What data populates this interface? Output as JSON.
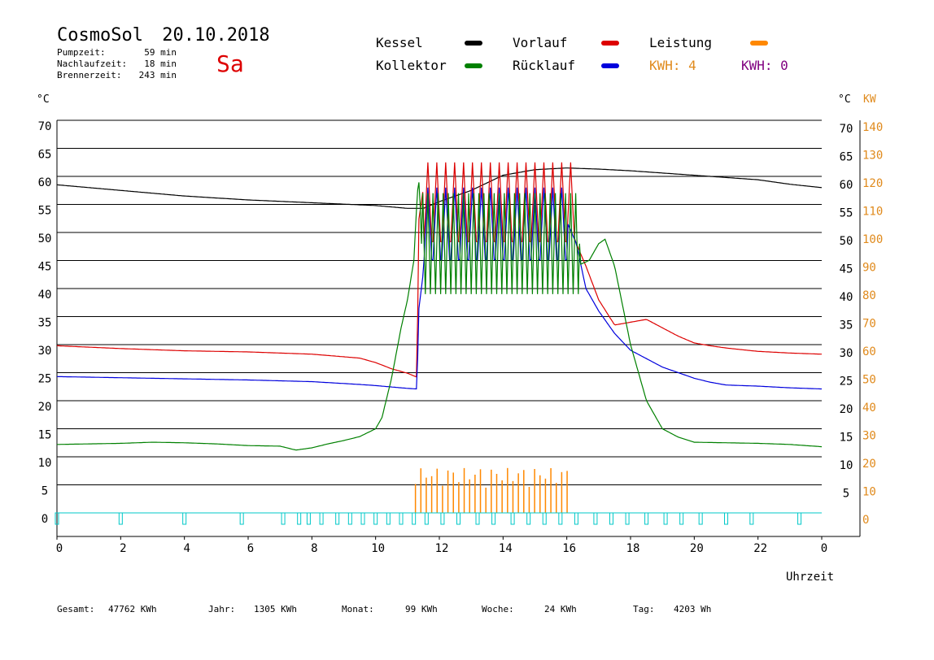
{
  "header": {
    "app_name": "CosmoSol",
    "date": "20.10.2018",
    "weekday": "Sa",
    "stats": [
      {
        "label": "Pumpzeit:",
        "value": "59 min"
      },
      {
        "label": "Nachlaufzeit:",
        "value": "18 min"
      },
      {
        "label": "Brennerzeit:",
        "value": "243 min"
      }
    ]
  },
  "legend": {
    "kessel": {
      "label": "Kessel",
      "color": "#000000"
    },
    "vorlauf": {
      "label": "Vorlauf",
      "color": "#dd0000"
    },
    "leistung": {
      "label": "Leistung",
      "color": "#ff8800"
    },
    "kollektor": {
      "label": "Kollektor",
      "color": "#008000"
    },
    "ruecklauf": {
      "label": "Rücklauf",
      "color": "#0000dd"
    },
    "kwh_orange": {
      "text": "KWH: 4",
      "color": "#e08a1c"
    },
    "kwh_purple": {
      "text": "KWH: 0",
      "color": "#800080"
    }
  },
  "axes": {
    "y_left_unit": "°C",
    "y_right_unit": "°C",
    "y_right2_unit": "KW",
    "x_label": "Uhrzeit",
    "left_ticks": [
      "70",
      "65",
      "60",
      "55",
      "50",
      "45",
      "40",
      "35",
      "30",
      "25",
      "20",
      "15",
      "10",
      "5",
      "0"
    ],
    "right_ticks": [
      "70",
      "65",
      "60",
      "55",
      "50",
      "45",
      "40",
      "35",
      "30",
      "25",
      "20",
      "15",
      "10",
      "5"
    ],
    "right2_ticks": [
      "140",
      "130",
      "120",
      "110",
      "100",
      "90",
      "80",
      "70",
      "60",
      "50",
      "40",
      "30",
      "20",
      "10",
      "0"
    ],
    "x_ticks": [
      "0",
      "2",
      "4",
      "6",
      "8",
      "10",
      "12",
      "14",
      "16",
      "18",
      "20",
      "22",
      "0"
    ]
  },
  "footer": [
    {
      "label": "Gesamt:",
      "value": "47762 KWh"
    },
    {
      "label": "Jahr:",
      "value": "1305 KWh"
    },
    {
      "label": "Monat:",
      "value": "99 KWh"
    },
    {
      "label": "Woche:",
      "value": "24 KWh"
    },
    {
      "label": "Tag:",
      "value": "4203 Wh"
    }
  ],
  "chart_data": {
    "type": "line",
    "xlabel": "Uhrzeit",
    "ylabel": "°C",
    "xlim": [
      0,
      24
    ],
    "ylim": [
      0,
      70
    ],
    "y2lim": [
      0,
      140
    ],
    "grid": true,
    "legend_position": "top",
    "series": [
      {
        "name": "Kessel",
        "color": "#000000",
        "points": [
          [
            0,
            58.5
          ],
          [
            2,
            57.5
          ],
          [
            4,
            56.5
          ],
          [
            6,
            55.8
          ],
          [
            8,
            55.3
          ],
          [
            10,
            54.8
          ],
          [
            11,
            54.3
          ],
          [
            11.5,
            54.3
          ],
          [
            12,
            55.5
          ],
          [
            13,
            57.5
          ],
          [
            14,
            60.2
          ],
          [
            15,
            61.2
          ],
          [
            16,
            61.5
          ],
          [
            17,
            61.3
          ],
          [
            18,
            61.0
          ],
          [
            19,
            60.6
          ],
          [
            20,
            60.2
          ],
          [
            21,
            59.8
          ],
          [
            22,
            59.4
          ],
          [
            23,
            58.6
          ],
          [
            24,
            58.0
          ]
        ]
      },
      {
        "name": "Vorlauf",
        "color": "#dd0000",
        "points": [
          [
            0,
            29.8
          ],
          [
            2,
            29.3
          ],
          [
            4,
            28.9
          ],
          [
            6,
            28.7
          ],
          [
            8,
            28.3
          ],
          [
            9.5,
            27.6
          ],
          [
            10,
            26.8
          ],
          [
            10.5,
            25.7
          ],
          [
            11,
            24.9
          ],
          [
            11.3,
            24.2
          ],
          [
            11.35,
            52
          ],
          [
            11.5,
            58
          ],
          [
            11.8,
            55
          ],
          [
            12,
            54
          ],
          [
            12.5,
            54
          ],
          [
            13,
            54
          ],
          [
            13.5,
            54
          ],
          [
            14,
            54
          ],
          [
            14.5,
            53
          ],
          [
            15,
            53
          ],
          [
            15.5,
            53
          ],
          [
            16,
            53
          ],
          [
            16.3,
            48
          ],
          [
            16.6,
            44
          ],
          [
            17,
            38
          ],
          [
            17.5,
            33.5
          ],
          [
            18,
            34
          ],
          [
            18.5,
            34.5
          ],
          [
            19,
            33
          ],
          [
            19.5,
            31.5
          ],
          [
            20,
            30.3
          ],
          [
            20.5,
            29.8
          ],
          [
            21,
            29.4
          ],
          [
            22,
            28.8
          ],
          [
            23,
            28.5
          ],
          [
            24,
            28.3
          ]
        ],
        "spikes": {
          "from": 11.5,
          "to": 16.2,
          "step": 0.28,
          "high": 62.5,
          "low": 46
        }
      },
      {
        "name": "Rücklauf",
        "color": "#0000dd",
        "points": [
          [
            0,
            24.3
          ],
          [
            2,
            24.1
          ],
          [
            4,
            23.9
          ],
          [
            6,
            23.7
          ],
          [
            8,
            23.4
          ],
          [
            9.5,
            22.9
          ],
          [
            10,
            22.7
          ],
          [
            11,
            22.2
          ],
          [
            11.3,
            22.1
          ],
          [
            11.35,
            36
          ],
          [
            11.5,
            43
          ],
          [
            12,
            41
          ],
          [
            12.5,
            50
          ],
          [
            13,
            56
          ],
          [
            14,
            58
          ],
          [
            14.5,
            55
          ],
          [
            15,
            51
          ],
          [
            15.5,
            53
          ],
          [
            16,
            52
          ],
          [
            16.3,
            48
          ],
          [
            16.6,
            40
          ],
          [
            17,
            36
          ],
          [
            17.5,
            32
          ],
          [
            18,
            29
          ],
          [
            18.5,
            27.5
          ],
          [
            19,
            26
          ],
          [
            19.5,
            25
          ],
          [
            20,
            24
          ],
          [
            20.5,
            23.3
          ],
          [
            21,
            22.8
          ],
          [
            22,
            22.6
          ],
          [
            23,
            22.3
          ],
          [
            24,
            22.1
          ]
        ],
        "spikes": {
          "from": 11.5,
          "to": 16.0,
          "step": 0.28,
          "high": 58,
          "low": 43
        }
      },
      {
        "name": "Kollektor",
        "color": "#008000",
        "points": [
          [
            0,
            12.2
          ],
          [
            1,
            12.3
          ],
          [
            2,
            12.4
          ],
          [
            3,
            12.6
          ],
          [
            4,
            12.5
          ],
          [
            5,
            12.3
          ],
          [
            6,
            12.0
          ],
          [
            7,
            11.9
          ],
          [
            7.5,
            11.2
          ],
          [
            8,
            11.6
          ],
          [
            8.5,
            12.3
          ],
          [
            9,
            12.9
          ],
          [
            9.5,
            13.6
          ],
          [
            10,
            15
          ],
          [
            10.2,
            17
          ],
          [
            10.5,
            24
          ],
          [
            10.8,
            33
          ],
          [
            11,
            38
          ],
          [
            11.2,
            45
          ],
          [
            11.3,
            56
          ],
          [
            11.35,
            60
          ],
          [
            11.5,
            44
          ],
          [
            12,
            42
          ],
          [
            13,
            43
          ],
          [
            14,
            45
          ],
          [
            15,
            43
          ],
          [
            16,
            44
          ],
          [
            16.3,
            44
          ],
          [
            16.5,
            44.5
          ],
          [
            16.7,
            45
          ],
          [
            17,
            48
          ],
          [
            17.2,
            48.8
          ],
          [
            17.5,
            44
          ],
          [
            18,
            30
          ],
          [
            18.5,
            20
          ],
          [
            19,
            15
          ],
          [
            19.5,
            13.5
          ],
          [
            20,
            12.6
          ],
          [
            21,
            12.5
          ],
          [
            22,
            12.4
          ],
          [
            23,
            12.2
          ],
          [
            24,
            11.8
          ]
        ],
        "spikes": {
          "from": 11.4,
          "to": 16.4,
          "step": 0.16,
          "high": 57,
          "low": 39
        }
      },
      {
        "name": "Leistung",
        "color": "#ff8800",
        "axis": "KW",
        "bars": {
          "from": 11.25,
          "to": 16.1,
          "step": 0.17,
          "max": 16
        }
      },
      {
        "name": "Pumpe",
        "color": "#00c8c8",
        "pulses": [
          0,
          2.0,
          4.0,
          5.8,
          7.1,
          7.6,
          7.9,
          8.3,
          8.8,
          9.2,
          9.6,
          10.0,
          10.4,
          10.8,
          11.2,
          11.6,
          12.1,
          12.6,
          13.2,
          13.7,
          14.3,
          14.8,
          15.3,
          15.8,
          16.3,
          16.9,
          17.4,
          17.9,
          18.5,
          19.1,
          19.6,
          20.2,
          21.0,
          21.8,
          23.3
        ]
      }
    ]
  }
}
